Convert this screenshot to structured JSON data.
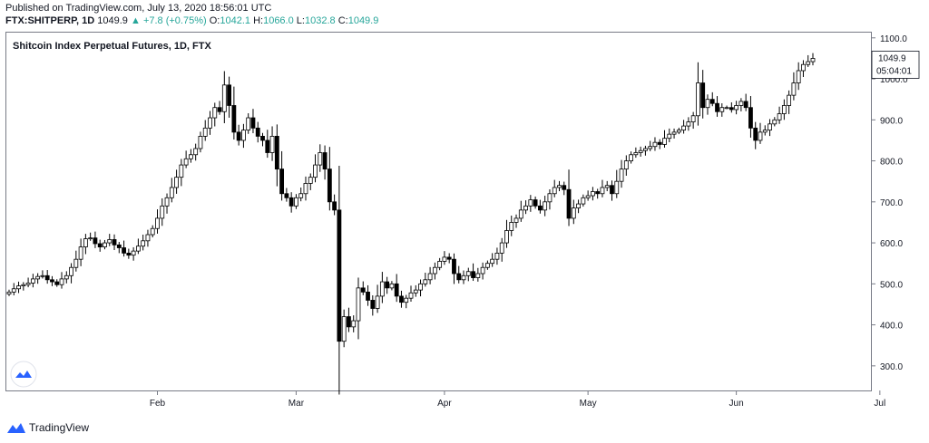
{
  "header": {
    "published": "Published on TradingView.com, July 13, 2020 18:56:01 UTC",
    "symbol": "FTX:SHITPERP, 1D",
    "price": "1049.9",
    "change_arrow": "▲",
    "change": "+7.8 (+0.75%)",
    "o_label": "O:",
    "o_value": "1042.1",
    "h_label": "H:",
    "h_value": "1066.0",
    "l_label": "L:",
    "l_value": "1032.8",
    "c_label": "C:",
    "c_value": "1049.9"
  },
  "footer": {
    "brand": "TradingView"
  },
  "colors": {
    "up_fill": "#ffffff",
    "down_fill": "#000000",
    "wick": "#000000",
    "accent": "#26a69a",
    "logo": "#2962ff"
  },
  "icons": {
    "footer_logo": "tradingview-logo-icon",
    "chart_logo": "tradingview-logo-icon"
  },
  "chart_data": {
    "type": "candlestick",
    "title": "Shitcoin Index Perpetual Futures, 1D, FTX",
    "ylim": [
      240,
      1115
    ],
    "y_ticks": [
      "300.0",
      "400.0",
      "500.0",
      "600.0",
      "700.0",
      "800.0",
      "900.0",
      "1000.0",
      "1100.0"
    ],
    "y_tick_values": [
      300,
      400,
      500,
      600,
      700,
      800,
      900,
      1000,
      1100
    ],
    "x_ticks": [
      "Feb",
      "Mar",
      "Apr",
      "May",
      "Jun",
      "Jul"
    ],
    "x_tick_days": [
      31,
      60,
      91,
      121,
      152,
      182
    ],
    "first_day": 0,
    "last_price_label": "1049.9",
    "last_price": 1049.9,
    "countdown": "05:04:01",
    "close_series": [
      480,
      488,
      495,
      498,
      502,
      512,
      518,
      520,
      510,
      505,
      498,
      512,
      520,
      540,
      560,
      590,
      610,
      612,
      598,
      590,
      600,
      608,
      595,
      588,
      575,
      570,
      580,
      592,
      605,
      620,
      635,
      660,
      690,
      710,
      735,
      760,
      790,
      805,
      815,
      830,
      860,
      880,
      905,
      930,
      920,
      985,
      935,
      870,
      850,
      875,
      905,
      880,
      860,
      850,
      820,
      860,
      780,
      720,
      710,
      690,
      710,
      720,
      745,
      760,
      790,
      820,
      780,
      700,
      680,
      360,
      420,
      395,
      410,
      490,
      480,
      460,
      440,
      470,
      505,
      490,
      500,
      470,
      455,
      465,
      478,
      485,
      500,
      510,
      525,
      540,
      555,
      565,
      560,
      525,
      510,
      520,
      530,
      515,
      525,
      540,
      550,
      560,
      575,
      600,
      630,
      650,
      660,
      680,
      690,
      705,
      690,
      680,
      700,
      720,
      735,
      740,
      730,
      660,
      685,
      695,
      710,
      715,
      725,
      720,
      735,
      740,
      720,
      750,
      780,
      800,
      815,
      820,
      825,
      830,
      835,
      845,
      840,
      855,
      865,
      870,
      875,
      885,
      895,
      910,
      990,
      930,
      950,
      940,
      920,
      930,
      930,
      925,
      935,
      945,
      930,
      880,
      850,
      870,
      875,
      890,
      900,
      915,
      935,
      960,
      990,
      1020,
      1035,
      1042,
      1049.9
    ]
  }
}
